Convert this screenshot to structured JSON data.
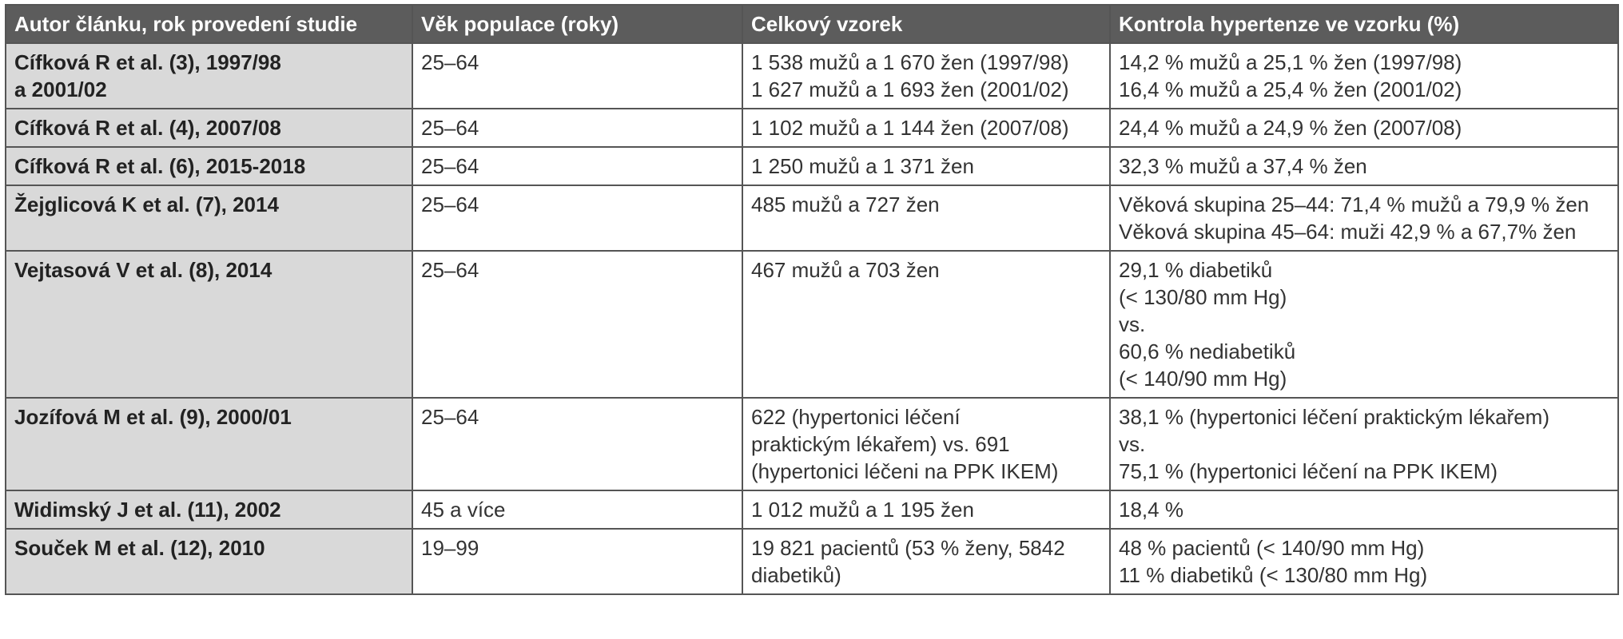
{
  "table": {
    "header": [
      "Autor článku, rok provedení studie",
      "Věk populace (roky)",
      "Celkový vzorek",
      "Kontrola hypertenze ve vzorku (%)"
    ],
    "rows": [
      [
        [
          "Cífková R et al. (3), 1997/98",
          "a 2001/02"
        ],
        [
          "25–64"
        ],
        [
          "1 538 mužů a 1 670 žen (1997/98)",
          "1 627 mužů a 1 693 žen (2001/02)"
        ],
        [
          "14,2 % mužů a 25,1 % žen (1997/98)",
          "16,4 % mužů a 25,4 % žen (2001/02)"
        ]
      ],
      [
        [
          "Cífková R et al. (4), 2007/08"
        ],
        [
          "25–64"
        ],
        [
          "1 102 mužů a 1 144 žen (2007/08)"
        ],
        [
          "24,4 % mužů a 24,9 % žen (2007/08)"
        ]
      ],
      [
        [
          "Cífková R et al. (6), 2015-2018"
        ],
        [
          "25–64"
        ],
        [
          "1 250 mužů a 1 371 žen"
        ],
        [
          "32,3 % mužů a 37,4 % žen"
        ]
      ],
      [
        [
          "Žejglicová K et al. (7), 2014"
        ],
        [
          "25–64"
        ],
        [
          "485 mužů a 727 žen"
        ],
        [
          "Věková skupina 25–44: 71,4 % mužů a 79,9 % žen",
          "Věková skupina 45–64: muži 42,9 % a 67,7% žen"
        ]
      ],
      [
        [
          "Vejtasová V et al. (8), 2014"
        ],
        [
          "25–64"
        ],
        [
          "467 mužů a 703 žen"
        ],
        [
          "29,1 % diabetiků",
          "(< 130/80 mm Hg)",
          "vs.",
          "60,6 % nediabetiků",
          "(< 140/90 mm Hg)"
        ]
      ],
      [
        [
          "Jozífová M et al. (9), 2000/01"
        ],
        [
          "25–64"
        ],
        [
          "622 (hypertonici léčení",
          "praktickým lékařem) vs. 691",
          "(hypertonici léčeni na PPK IKEM)"
        ],
        [
          "38,1 % (hypertonici léčení praktickým lékařem)",
          "vs.",
          "75,1 % (hypertonici léčení na PPK IKEM)"
        ]
      ],
      [
        [
          "Widimský J et al. (11), 2002"
        ],
        [
          "45 a více"
        ],
        [
          "1 012 mužů a 1 195 žen"
        ],
        [
          "18,4 %"
        ]
      ],
      [
        [
          "Souček M et al. (12), 2010"
        ],
        [
          "19–99"
        ],
        [
          "19 821 pacientů (53 % ženy, 5842",
          "diabetiků)"
        ],
        [
          "48 % pacientů (< 140/90 mm Hg)",
          "11 % diabetiků (< 130/80 mm Hg)"
        ]
      ]
    ]
  }
}
